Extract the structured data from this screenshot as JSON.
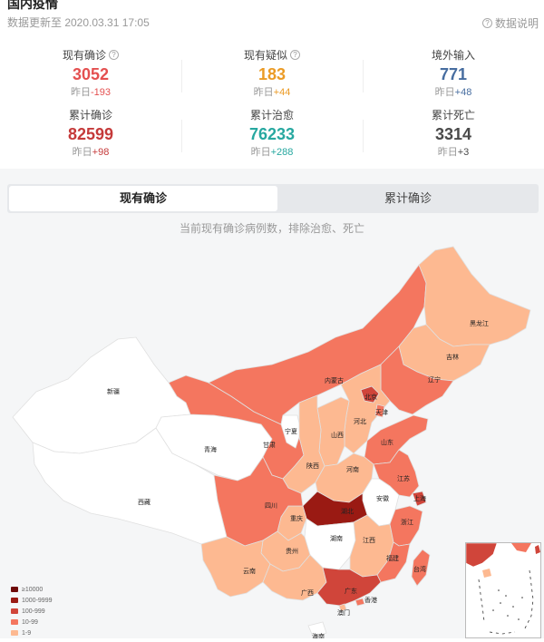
{
  "header": {
    "title": "国内疫情",
    "updated": "数据更新至 2020.03.31 17:05",
    "explain_label": "数据说明"
  },
  "stats": [
    {
      "label": "现有确诊",
      "has_help": true,
      "value": "3052",
      "delta_prefix": "昨日",
      "delta": "-193",
      "color": "#e45050"
    },
    {
      "label": "现有疑似",
      "has_help": true,
      "value": "183",
      "delta_prefix": "昨日",
      "delta": "+44",
      "color": "#eb9b25"
    },
    {
      "label": "境外输入",
      "has_help": false,
      "value": "771",
      "delta_prefix": "昨日",
      "delta": "+48",
      "color": "#476da0"
    },
    {
      "label": "累计确诊",
      "has_help": false,
      "value": "82599",
      "delta_prefix": "昨日",
      "delta": "+98",
      "color": "#c53a3a"
    },
    {
      "label": "累计治愈",
      "has_help": false,
      "value": "76233",
      "delta_prefix": "昨日",
      "delta": "+288",
      "color": "#27a8a0"
    },
    {
      "label": "累计死亡",
      "has_help": false,
      "value": "3314",
      "delta_prefix": "昨日",
      "delta": "+3",
      "color": "#4a4a4a"
    }
  ],
  "tabs": {
    "active": "现有确诊",
    "inactive": "累计确诊"
  },
  "map_subtitle": "当前现有确诊病例数，排除治愈、死亡",
  "colors": {
    "c0": "#ffffff",
    "c1": "#fdb991",
    "c2": "#f4765f",
    "c3": "#d0453a",
    "c4": "#9a1a13",
    "c5": "#6e0a08"
  },
  "provinces": [
    {
      "name": "新疆",
      "level": 0
    },
    {
      "name": "西藏",
      "level": 0
    },
    {
      "name": "青海",
      "level": 0
    },
    {
      "name": "甘肃",
      "level": 2
    },
    {
      "name": "内蒙古",
      "level": 2
    },
    {
      "name": "黑龙江",
      "level": 1
    },
    {
      "name": "吉林",
      "level": 1
    },
    {
      "name": "辽宁",
      "level": 2
    },
    {
      "name": "北京",
      "level": 3
    },
    {
      "name": "天津",
      "level": 2
    },
    {
      "name": "河北",
      "level": 1
    },
    {
      "name": "山西",
      "level": 1
    },
    {
      "name": "宁夏",
      "level": 0
    },
    {
      "name": "陕西",
      "level": 1
    },
    {
      "name": "山东",
      "level": 2
    },
    {
      "name": "河南",
      "level": 1
    },
    {
      "name": "江苏",
      "level": 2
    },
    {
      "name": "安徽",
      "level": 0
    },
    {
      "name": "上海",
      "level": 3
    },
    {
      "name": "湖北",
      "level": 4
    },
    {
      "name": "四川",
      "level": 2
    },
    {
      "name": "重庆",
      "level": 1
    },
    {
      "name": "湖南",
      "level": 0
    },
    {
      "name": "江西",
      "level": 1
    },
    {
      "name": "浙江",
      "level": 2
    },
    {
      "name": "福建",
      "level": 2
    },
    {
      "name": "贵州",
      "level": 1
    },
    {
      "name": "云南",
      "level": 1
    },
    {
      "name": "广西",
      "level": 1
    },
    {
      "name": "广东",
      "level": 3
    },
    {
      "name": "香港",
      "level": 2
    },
    {
      "name": "澳门",
      "level": 1
    },
    {
      "name": "台湾",
      "level": 2
    },
    {
      "name": "海南",
      "level": 0
    }
  ],
  "legend": [
    {
      "label": "≥10000",
      "color": "#6e0a08"
    },
    {
      "label": "1000-9999",
      "color": "#9a1a13"
    },
    {
      "label": "100-999",
      "color": "#d0453a"
    },
    {
      "label": "10-99",
      "color": "#f4765f"
    },
    {
      "label": "1-9",
      "color": "#fdb991"
    }
  ]
}
